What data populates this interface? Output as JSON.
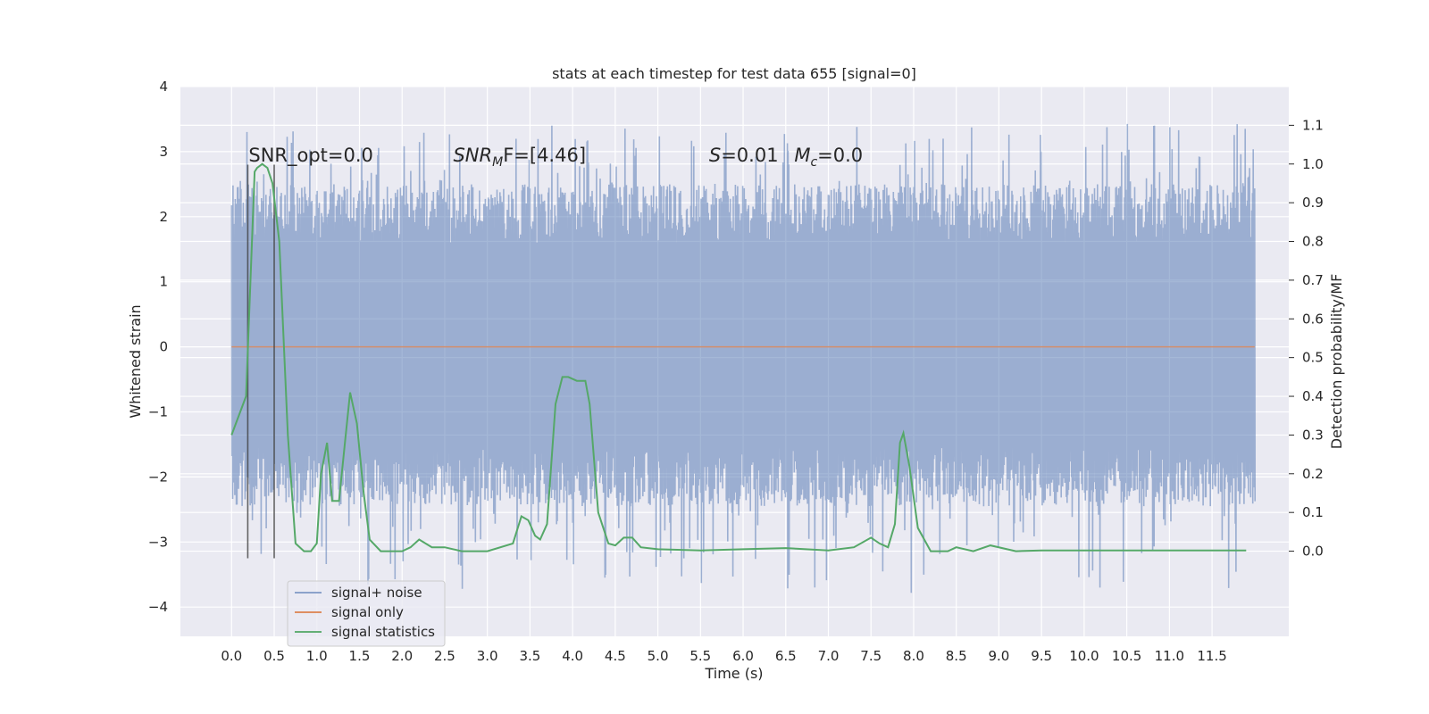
{
  "chart_data": {
    "type": "line",
    "title": "stats at each timestep for test data 655 [signal=0]",
    "xlabel": "Time (s)",
    "ylabel": "Whitened strain",
    "y2label": "Detection probability/MF",
    "xlim": [
      -0.6,
      12.4
    ],
    "ylim": [
      -4.45,
      4.0
    ],
    "y2lim": [
      -0.22,
      1.2
    ],
    "x_ticks": [
      "0.0",
      "0.5",
      "1.0",
      "1.5",
      "2.0",
      "2.5",
      "3.0",
      "3.5",
      "4.0",
      "4.5",
      "5.0",
      "5.5",
      "6.0",
      "6.5",
      "7.0",
      "7.5",
      "8.0",
      "8.5",
      "9.0",
      "9.5",
      "10.0",
      "10.5",
      "11.0",
      "11.5"
    ],
    "y_ticks": [
      "4",
      "3",
      "2",
      "1",
      "0",
      "−1",
      "−2",
      "−3",
      "−4"
    ],
    "y2_ticks": [
      "1.1",
      "1.0",
      "0.9",
      "0.8",
      "0.7",
      "0.6",
      "0.5",
      "0.4",
      "0.3",
      "0.2",
      "0.1",
      "0.0"
    ],
    "grid": true,
    "legend_position": "lower-left",
    "annotations": [
      {
        "text": "SNR_opt=0.0",
        "x": 0.2,
        "y": 2.85
      },
      {
        "text": "SNR",
        "sub": "M",
        "text2": "F=[4.46]",
        "italic": "SNR",
        "x": 2.6,
        "y": 2.85
      },
      {
        "text": "S",
        "text2": "=0.01",
        "italic": "S",
        "x": 5.6,
        "y": 2.85
      },
      {
        "text": "M",
        "sub": "c",
        "text2": "=0.0",
        "italic": "M",
        "x": 6.6,
        "y": 2.85
      }
    ],
    "vlines": [
      0.19,
      0.5
    ],
    "vline_range": [
      -3.25,
      2.8
    ],
    "series": [
      {
        "name": "signal+ noise",
        "color": "#4c72b0",
        "axis": "left",
        "x_range": [
          0.0,
          12.0
        ],
        "envelope_typical": [
          -1.55,
          1.6
        ],
        "envelope_extreme": [
          -4.1,
          3.63
        ]
      },
      {
        "name": "signal only",
        "color": "#dd8452",
        "axis": "left",
        "x": [
          0.0,
          12.0
        ],
        "y": [
          0.0,
          0.0
        ]
      },
      {
        "name": "signal statistics",
        "color": "#55a868",
        "axis": "right",
        "x": [
          0.0,
          0.17,
          0.27,
          0.3,
          0.36,
          0.42,
          0.48,
          0.56,
          0.66,
          0.75,
          0.85,
          0.93,
          1.0,
          1.05,
          1.12,
          1.18,
          1.26,
          1.33,
          1.39,
          1.47,
          1.55,
          1.62,
          1.75,
          2.0,
          2.1,
          2.2,
          2.35,
          2.5,
          2.7,
          3.0,
          3.3,
          3.4,
          3.48,
          3.56,
          3.62,
          3.7,
          3.8,
          3.88,
          3.95,
          4.05,
          4.15,
          4.2,
          4.3,
          4.42,
          4.5,
          4.6,
          4.7,
          4.8,
          5.0,
          5.5,
          6.0,
          6.5,
          7.0,
          7.3,
          7.5,
          7.6,
          7.7,
          7.78,
          7.84,
          7.88,
          7.95,
          8.05,
          8.2,
          8.4,
          8.5,
          8.7,
          8.9,
          9.2,
          9.5,
          10.0,
          10.5,
          11.0,
          11.5,
          11.9
        ],
        "y": [
          0.3,
          0.4,
          0.98,
          0.99,
          1.0,
          0.99,
          0.95,
          0.8,
          0.3,
          0.02,
          0.0,
          0.0,
          0.02,
          0.2,
          0.28,
          0.13,
          0.13,
          0.28,
          0.41,
          0.33,
          0.15,
          0.03,
          0.0,
          0.0,
          0.01,
          0.03,
          0.01,
          0.01,
          0.0,
          0.0,
          0.02,
          0.09,
          0.08,
          0.04,
          0.03,
          0.07,
          0.38,
          0.45,
          0.45,
          0.44,
          0.44,
          0.38,
          0.1,
          0.02,
          0.015,
          0.035,
          0.035,
          0.01,
          0.005,
          0.002,
          0.005,
          0.008,
          0.002,
          0.01,
          0.035,
          0.02,
          0.01,
          0.07,
          0.28,
          0.305,
          0.22,
          0.06,
          0.0,
          0.0,
          0.01,
          0.0,
          0.015,
          0.0,
          0.002,
          0.002,
          0.002,
          0.002,
          0.002,
          0.002
        ]
      }
    ]
  }
}
